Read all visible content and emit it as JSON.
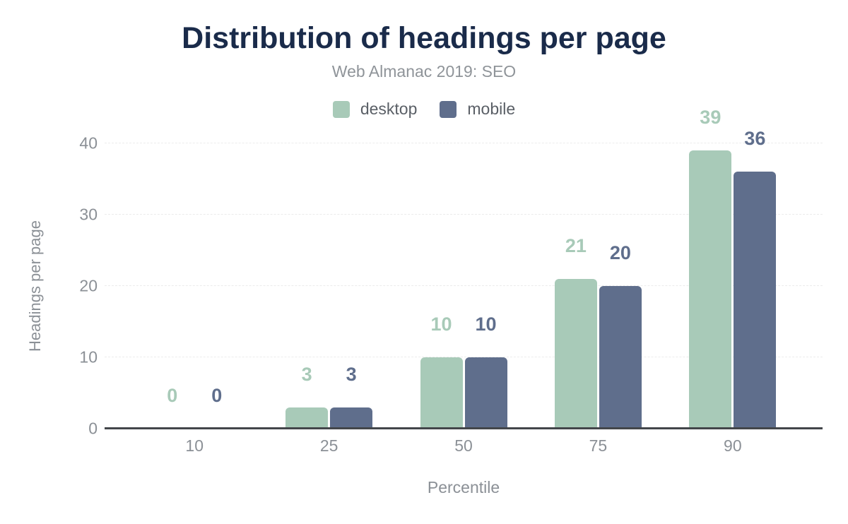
{
  "chart_data": {
    "type": "bar",
    "title": "Distribution of headings per page",
    "subtitle": "Web Almanac 2019: SEO",
    "xlabel": "Percentile",
    "ylabel": "Headings per page",
    "categories": [
      "10",
      "25",
      "50",
      "75",
      "90"
    ],
    "series": [
      {
        "name": "desktop",
        "color": "#a8cab8",
        "values": [
          0,
          3,
          10,
          21,
          39
        ]
      },
      {
        "name": "mobile",
        "color": "#5f6e8c",
        "values": [
          0,
          3,
          10,
          20,
          36
        ]
      }
    ],
    "yticks": [
      0,
      10,
      20,
      30,
      40
    ],
    "ylim": [
      0,
      40
    ],
    "grid": true,
    "legend_position": "top",
    "value_labels": true,
    "colors": {
      "title": "#1a2b4a",
      "subtitle": "#8f9499",
      "axis_labels": "#8b9096",
      "legend_text": "#5a5f66",
      "axis_line": "#43464a",
      "gridline": "#ececec"
    }
  }
}
